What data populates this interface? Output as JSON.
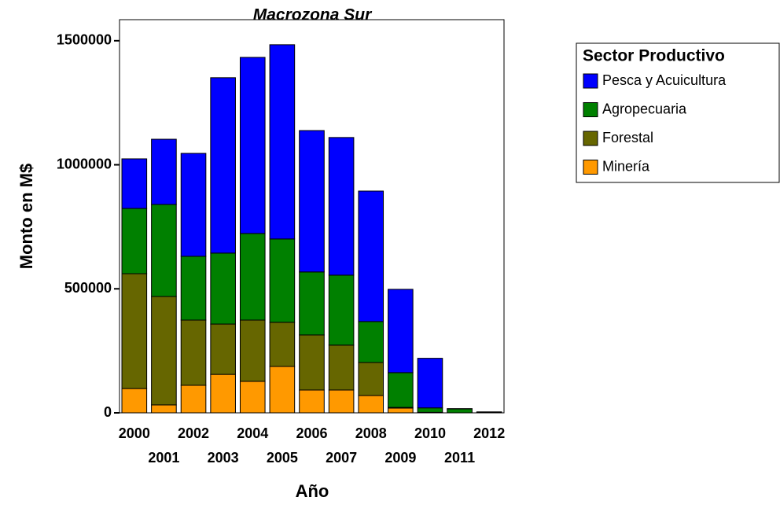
{
  "chart_data": {
    "type": "stacked_bar",
    "title": "Macrozona Sur",
    "x_label": "Año",
    "y_label": "Monto en M$",
    "legend_title": "Sector Productivo",
    "legend_position": "right",
    "categories": [
      "2000",
      "2001",
      "2002",
      "2003",
      "2004",
      "2005",
      "2006",
      "2007",
      "2008",
      "2009",
      "2010",
      "2011",
      "2012"
    ],
    "series": [
      {
        "name": "Minería",
        "color": "#ff9900",
        "values": [
          98000,
          32000,
          111000,
          155000,
          127000,
          187000,
          92000,
          92000,
          70000,
          19000,
          1000,
          0,
          500
        ]
      },
      {
        "name": "Forestal",
        "color": "#666600",
        "values": [
          463000,
          437000,
          263000,
          203000,
          247000,
          178000,
          222000,
          181000,
          133000,
          3000,
          1000,
          0,
          500
        ]
      },
      {
        "name": "Agropecuaria",
        "color": "#008000",
        "values": [
          263000,
          371000,
          257000,
          286000,
          349000,
          336000,
          254000,
          282000,
          165000,
          140000,
          18000,
          16000,
          2000
        ]
      },
      {
        "name": "Pesca y Acuicultura",
        "color": "#0000ff",
        "values": [
          200000,
          263000,
          415000,
          707000,
          710000,
          783000,
          570000,
          555000,
          526000,
          336000,
          200000,
          1000,
          1000
        ]
      }
    ],
    "ylim": [
      0,
      1585000
    ],
    "yticks": [
      0,
      500000,
      1000000,
      1500000
    ],
    "grid": false
  }
}
